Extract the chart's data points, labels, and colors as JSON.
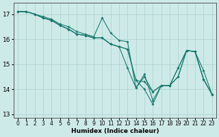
{
  "xlabel": "Humidex (Indice chaleur)",
  "bg_color": "#ceeae8",
  "grid_color": "#aed4d0",
  "line_color": "#1a7a6e",
  "xlim": [
    -0.5,
    23.5
  ],
  "ylim": [
    12.85,
    17.45
  ],
  "yticks": [
    13,
    14,
    15,
    16,
    17
  ],
  "xticks": [
    0,
    1,
    2,
    3,
    4,
    5,
    6,
    7,
    8,
    9,
    10,
    11,
    12,
    13,
    14,
    15,
    16,
    17,
    18,
    19,
    20,
    21,
    22,
    23
  ],
  "series": [
    [
      17.1,
      17.1,
      17.0,
      16.9,
      16.8,
      16.6,
      16.5,
      16.3,
      16.2,
      16.1,
      16.85,
      16.25,
      15.95,
      15.9,
      14.05,
      14.6,
      13.55,
      14.15,
      14.15,
      14.5,
      15.55,
      15.5,
      14.75,
      13.8
    ],
    [
      17.1,
      17.1,
      17.0,
      16.85,
      16.75,
      16.55,
      16.4,
      16.2,
      16.15,
      16.05,
      16.05,
      15.8,
      15.7,
      15.6,
      14.35,
      14.3,
      13.9,
      14.15,
      14.15,
      14.85,
      15.55,
      15.5,
      14.4,
      13.8
    ],
    [
      17.1,
      17.1,
      17.0,
      16.85,
      16.75,
      16.55,
      16.4,
      16.2,
      16.15,
      16.05,
      16.05,
      15.8,
      15.7,
      14.85,
      14.05,
      14.5,
      13.9,
      14.15,
      14.15,
      14.5,
      15.55,
      15.5,
      14.4,
      13.8
    ],
    [
      17.1,
      17.1,
      17.0,
      16.85,
      16.75,
      16.55,
      16.4,
      16.2,
      16.15,
      16.05,
      16.05,
      15.8,
      15.7,
      15.6,
      14.35,
      14.0,
      13.4,
      14.15,
      14.15,
      14.85,
      15.55,
      15.5,
      14.4,
      13.8
    ]
  ]
}
